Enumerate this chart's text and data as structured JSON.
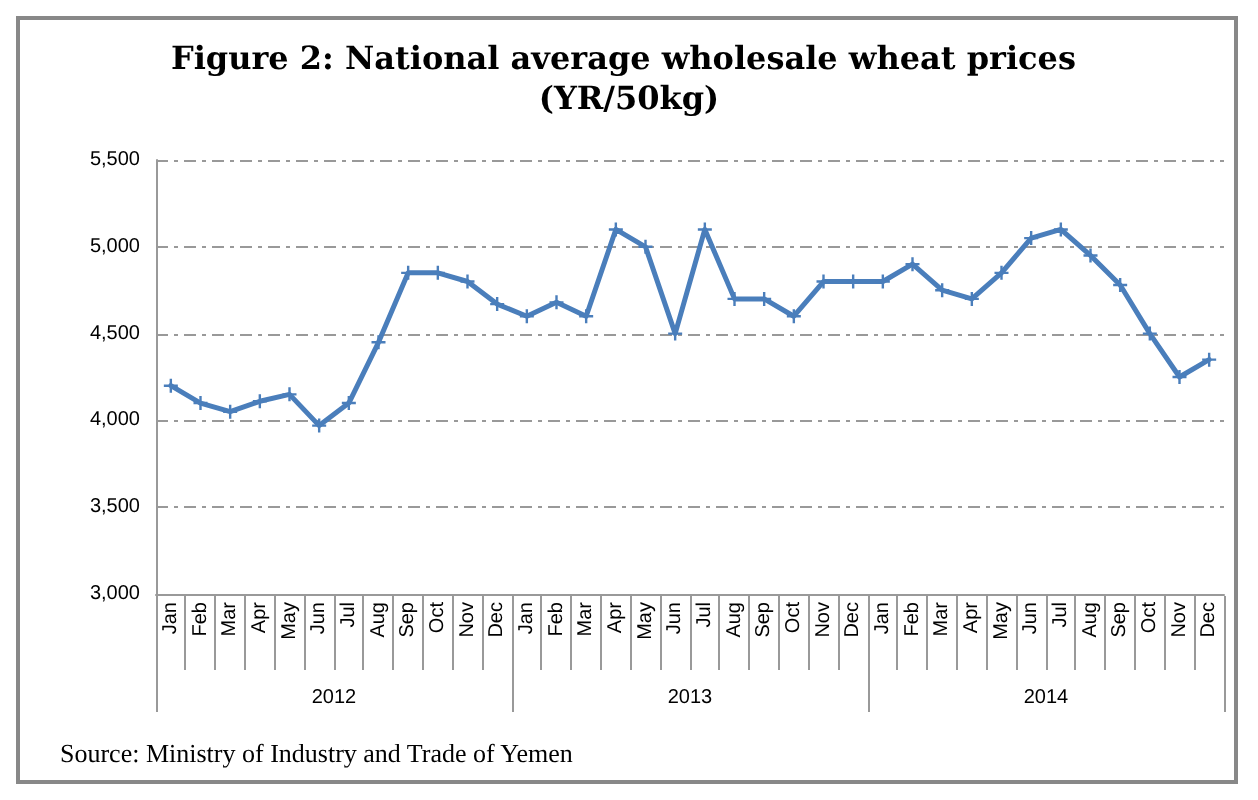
{
  "chart_data": {
    "type": "line",
    "title": "Figure 2: National average wholesale wheat prices (YR/50kg)",
    "categories": [
      "Jan",
      "Feb",
      "Mar",
      "Apr",
      "May",
      "Jun",
      "Jul",
      "Aug",
      "Sep",
      "Oct",
      "Nov",
      "Dec",
      "Jan",
      "Feb",
      "Mar",
      "Apr",
      "May",
      "Jun",
      "Jul",
      "Aug",
      "Sep",
      "Oct",
      "Nov",
      "Dec",
      "Jan",
      "Feb",
      "Mar",
      "Apr",
      "May",
      "Jun",
      "Jul",
      "Aug",
      "Sep",
      "Oct",
      "Nov",
      "Dec"
    ],
    "series": [
      {
        "color": "#4a7ebb",
        "values": [
          4200,
          4100,
          4050,
          4110,
          4150,
          3970,
          4100,
          4450,
          4850,
          4850,
          4800,
          4670,
          4600,
          4680,
          4600,
          5100,
          5000,
          4500,
          5100,
          4700,
          4700,
          4600,
          4800,
          4800,
          4800,
          4900,
          4750,
          4700,
          4850,
          5050,
          5100,
          4950,
          4780,
          4500,
          4250,
          4350
        ]
      }
    ],
    "ylim": [
      3000,
      5500
    ],
    "yticks": [
      {
        "value": 3000,
        "label": "3,000"
      },
      {
        "value": 3500,
        "label": "3,500"
      },
      {
        "value": 4000,
        "label": "4,000"
      },
      {
        "value": 4500,
        "label": "4,500"
      },
      {
        "value": 5000,
        "label": "5,000"
      },
      {
        "value": 5500,
        "label": "5,500"
      }
    ],
    "grid": "y",
    "marker": "cross",
    "line_style": "solid",
    "annotations": [
      "2012",
      "2013",
      "2014",
      "Source: Ministry of Industry and Trade of Yemen"
    ]
  }
}
